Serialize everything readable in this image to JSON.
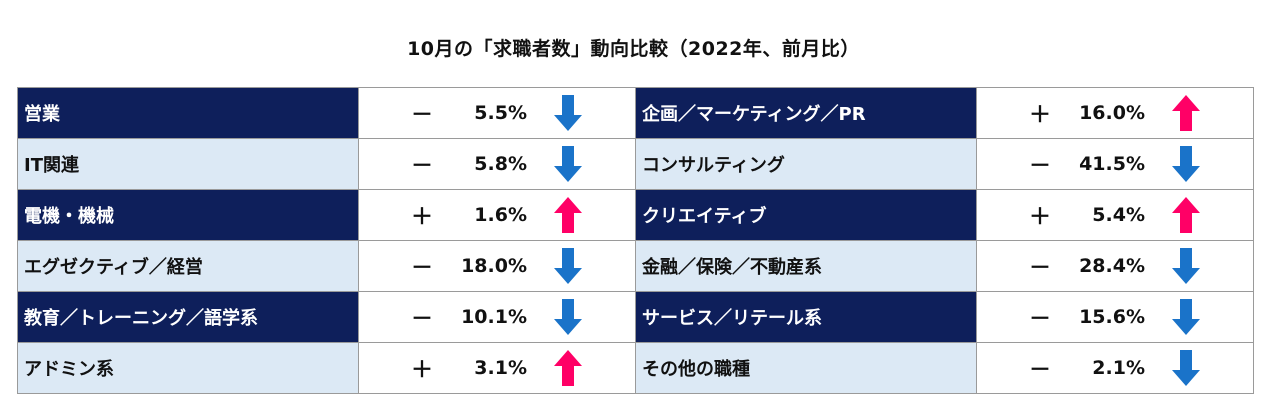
{
  "title": "10月の「求職者数」動向比較（2022年、前月比）",
  "colors": {
    "up": "#ff0066",
    "down": "#1a73c9",
    "dark_row": "#0e1f5b",
    "light_row": "#dce9f5"
  },
  "rows": [
    {
      "left": {
        "category": "営業",
        "sign": "－",
        "value": "5.5%",
        "direction": "down"
      },
      "right": {
        "category": "企画／マーケティング／PR",
        "sign": "＋",
        "value": "16.0%",
        "direction": "up"
      }
    },
    {
      "left": {
        "category": "IT関連",
        "sign": "－",
        "value": "5.8%",
        "direction": "down"
      },
      "right": {
        "category": "コンサルティング",
        "sign": "－",
        "value": "41.5%",
        "direction": "down"
      }
    },
    {
      "left": {
        "category": "電機・機械",
        "sign": "＋",
        "value": "1.6%",
        "direction": "up"
      },
      "right": {
        "category": "クリエイティブ",
        "sign": "＋",
        "value": "5.4%",
        "direction": "up"
      }
    },
    {
      "left": {
        "category": "エグゼクティブ／経営",
        "sign": "－",
        "value": "18.0%",
        "direction": "down"
      },
      "right": {
        "category": "金融／保険／不動産系",
        "sign": "－",
        "value": "28.4%",
        "direction": "down"
      }
    },
    {
      "left": {
        "category": "教育／トレーニング／語学系",
        "sign": "－",
        "value": "10.1%",
        "direction": "down"
      },
      "right": {
        "category": "サービス／リテール系",
        "sign": "－",
        "value": "15.6%",
        "direction": "down"
      }
    },
    {
      "left": {
        "category": "アドミン系",
        "sign": "＋",
        "value": "3.1%",
        "direction": "up"
      },
      "right": {
        "category": "その他の職種",
        "sign": "－",
        "value": "2.1%",
        "direction": "down"
      }
    }
  ]
}
